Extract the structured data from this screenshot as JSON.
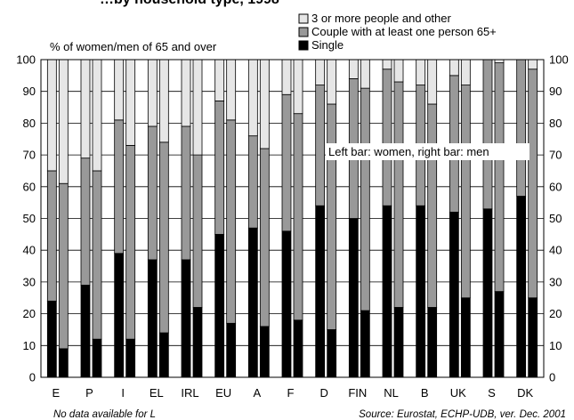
{
  "chart_data": {
    "type": "bar",
    "stacked": true,
    "title": "…by household type, 1998",
    "ylabel": "% of women/men of 65 and over",
    "ylim": [
      0,
      100
    ],
    "yticks": [
      0,
      10,
      20,
      30,
      40,
      50,
      60,
      70,
      80,
      90,
      100
    ],
    "grid": true,
    "legend_position": "top-right",
    "annotation": "Left bar: women, right bar: men",
    "note_left": "No data available for L",
    "note_right": "Source: Eurostat, ECHP-UDB, ver. Dec. 2001",
    "categories": [
      "E",
      "P",
      "I",
      "EL",
      "IRL",
      "EU",
      "A",
      "F",
      "D",
      "FIN",
      "NL",
      "B",
      "UK",
      "S",
      "DK"
    ],
    "bars_per_category": [
      "women",
      "men"
    ],
    "series": [
      {
        "name": "Single",
        "color": "#000000",
        "women": [
          24,
          29,
          39,
          37,
          37,
          45,
          47,
          46,
          54,
          50,
          54,
          54,
          52,
          53,
          57
        ],
        "men": [
          9,
          12,
          12,
          14,
          22,
          17,
          16,
          18,
          15,
          21,
          22,
          22,
          25,
          27,
          25
        ]
      },
      {
        "name": "Couple with at least one person 65+",
        "color": "#999999",
        "women": [
          41,
          40,
          42,
          42,
          42,
          42,
          29,
          43,
          38,
          44,
          43,
          38,
          43,
          47,
          43
        ],
        "men": [
          52,
          53,
          61,
          60,
          48,
          64,
          56,
          65,
          71,
          70,
          71,
          64,
          67,
          72,
          72
        ]
      },
      {
        "name": "3 or more people and other",
        "color": "#e6e6e6",
        "women": [
          35,
          31,
          19,
          21,
          21,
          13,
          24,
          11,
          8,
          6,
          3,
          8,
          5,
          0,
          0
        ],
        "men": [
          39,
          35,
          27,
          26,
          30,
          19,
          28,
          17,
          14,
          9,
          7,
          14,
          8,
          1,
          3
        ]
      }
    ]
  }
}
